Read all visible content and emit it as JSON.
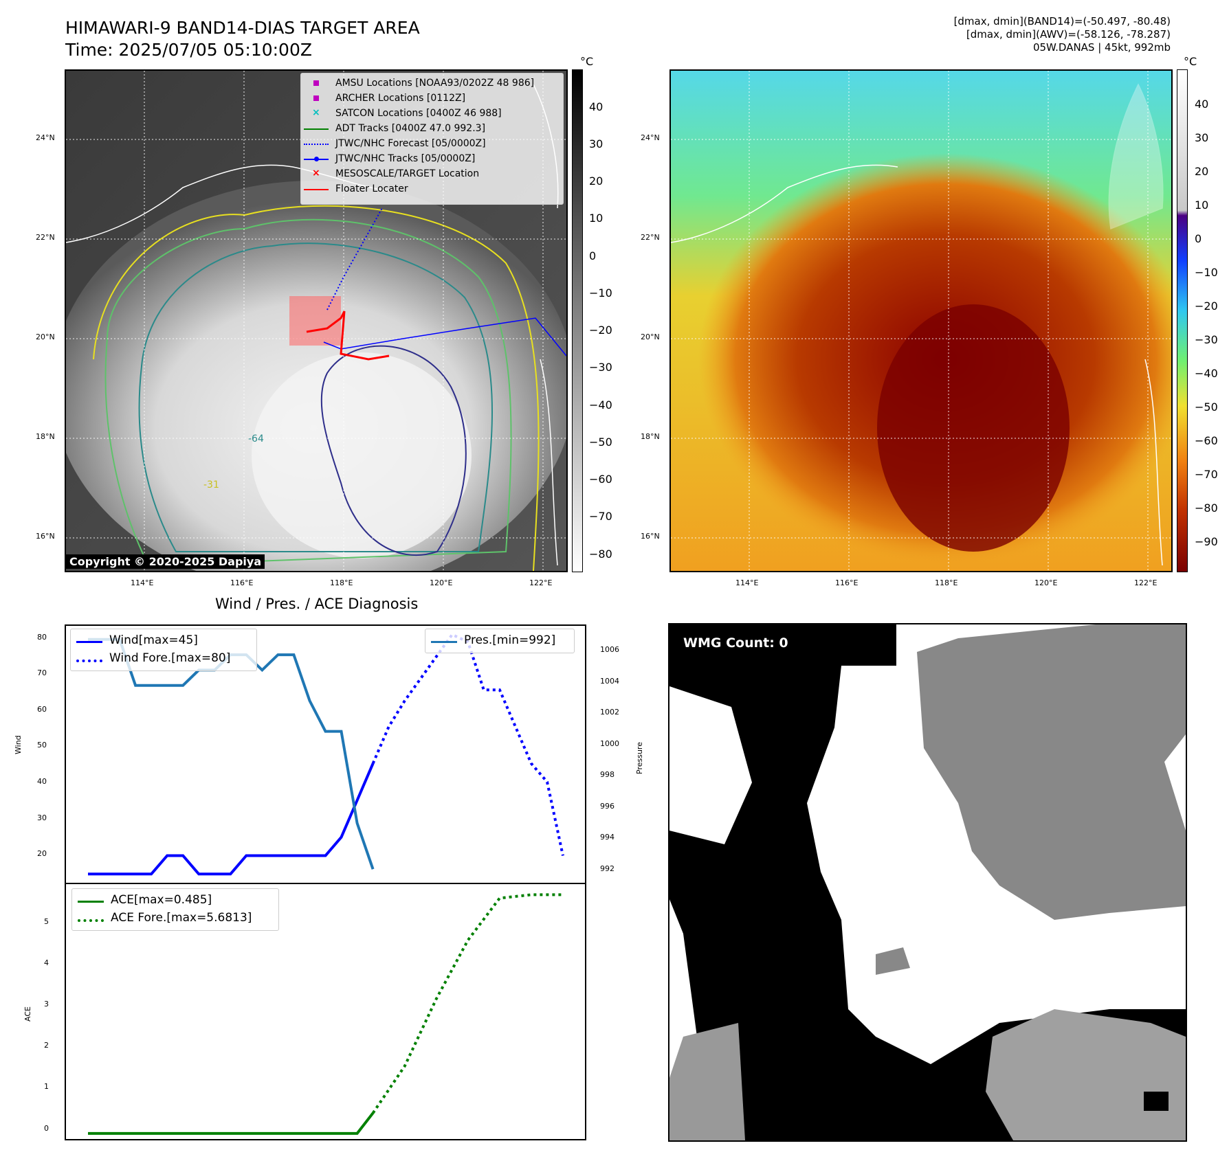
{
  "header": {
    "title": "HIMAWARI-9 BAND14-DIAS TARGET AREA",
    "time": "Time: 2025/07/05 05:10:00Z",
    "info_lines": [
      "[dmax, dmin](BAND14)=(-50.497, -80.48)",
      "[dmax, dmin](AWV)=(-58.126, -78.287)",
      "05W.DANAS | 45kt, 992mb"
    ]
  },
  "map": {
    "lat_ticks": [
      "24°N",
      "22°N",
      "20°N",
      "18°N",
      "16°N"
    ],
    "lon_ticks": [
      "114°E",
      "116°E",
      "118°E",
      "120°E",
      "122°E"
    ],
    "copyright": "Copyright © 2020-2025 Dapiya",
    "legend": [
      {
        "label": "AMSU Locations [NOAA93/0202Z 48 986]",
        "marker": "square",
        "color": "#bf00bf"
      },
      {
        "label": "ARCHER Locations [0112Z]",
        "marker": "square",
        "color": "#bf00bf"
      },
      {
        "label": "SATCON Locations [0400Z 46 988]",
        "marker": "x",
        "color": "#00bfbf"
      },
      {
        "label": "ADT Tracks [0400Z 47.0 992.3]",
        "marker": "line",
        "color": "#008000"
      },
      {
        "label": "JTWC/NHC Forecast [05/0000Z]",
        "marker": "dotted",
        "color": "#0000ff"
      },
      {
        "label": "JTWC/NHC Tracks [05/0000Z]",
        "marker": "line-dot",
        "color": "#0000ff"
      },
      {
        "label": "MESOSCALE/TARGET Location",
        "marker": "x",
        "color": "#ff0000"
      },
      {
        "label": "Floater Locater",
        "marker": "line",
        "color": "#ff0000"
      }
    ],
    "contour_labels": [
      "-64",
      "-31",
      "-64",
      "-64",
      "-64"
    ],
    "colorbar_unit": "°C",
    "colorbar_ticks": [
      "40",
      "30",
      "20",
      "10",
      "0",
      "−10",
      "−20",
      "−30",
      "−40",
      "−50",
      "−60",
      "−70",
      "−80"
    ],
    "awv_colorbar_ticks": [
      "40",
      "30",
      "20",
      "10",
      "0",
      "−10",
      "−20",
      "−30",
      "−40",
      "−50",
      "−60",
      "−70",
      "−80",
      "−90"
    ]
  },
  "diag": {
    "title": "Wind / Pres. / ACE Diagnosis",
    "wind_label": "Wind",
    "pres_label": "Pressure",
    "ace_label": "ACE",
    "wind_ticks": [
      "80",
      "70",
      "60",
      "50",
      "40",
      "30",
      "20"
    ],
    "pres_ticks": [
      "1006",
      "1004",
      "1002",
      "1000",
      "998",
      "996",
      "994",
      "992"
    ],
    "ace_ticks": [
      "5",
      "4",
      "3",
      "2",
      "1",
      "0"
    ],
    "legend_wind": "Wind[max=45]",
    "legend_wind_fore": "Wind Fore.[max=80]",
    "legend_pres": "Pres.[min=992]",
    "legend_ace": "ACE[max=0.485]",
    "legend_ace_fore": "ACE Fore.[max=5.6813]"
  },
  "wmg": {
    "label": "WMG Count: 0"
  },
  "chart_data": [
    {
      "type": "line",
      "title": "Wind / Pres. / ACE Diagnosis",
      "ylabel": "Wind",
      "ylim": [
        13,
        82
      ],
      "series": [
        {
          "name": "Wind[max=45]",
          "style": "solid",
          "color": "#0000ff",
          "x": [
            0,
            1,
            2,
            3,
            4,
            5,
            6,
            7,
            8,
            9,
            10,
            11,
            12,
            13,
            14,
            15,
            16,
            17,
            18
          ],
          "values": [
            15,
            15,
            15,
            15,
            15,
            20,
            20,
            15,
            15,
            15,
            20,
            20,
            20,
            20,
            20,
            20,
            25,
            35,
            45
          ]
        },
        {
          "name": "Wind Fore.[max=80]",
          "style": "dotted",
          "color": "#0000ff",
          "x": [
            18,
            19,
            20,
            21,
            22,
            23,
            24,
            25,
            26,
            27,
            28,
            29,
            30
          ],
          "values": [
            45,
            55,
            62,
            68,
            74,
            80,
            78,
            65,
            65,
            55,
            45,
            40,
            20
          ]
        }
      ]
    },
    {
      "type": "line",
      "ylabel": "Pressure",
      "ylim": [
        991.2,
        1007.8
      ],
      "series": [
        {
          "name": "Pres.[min=992]",
          "style": "solid",
          "color": "#1f77b4",
          "x": [
            0,
            1,
            2,
            3,
            4,
            5,
            6,
            7,
            8,
            9,
            10,
            11,
            12,
            13,
            14,
            15,
            16,
            17,
            18
          ],
          "values": [
            1007,
            1007,
            1007,
            1004,
            1004,
            1004,
            1004,
            1005,
            1005,
            1006,
            1006,
            1005,
            1006,
            1006,
            1003,
            1001,
            1001,
            995,
            992
          ]
        }
      ]
    },
    {
      "type": "line",
      "ylabel": "ACE",
      "ylim": [
        -0.1,
        5.9
      ],
      "series": [
        {
          "name": "ACE[max=0.485]",
          "style": "solid",
          "color": "#008000",
          "x": [
            0,
            17,
            18
          ],
          "values": [
            0,
            0,
            0.485
          ]
        },
        {
          "name": "ACE Fore.[max=5.6813]",
          "style": "dotted",
          "color": "#008000",
          "x": [
            18,
            20,
            22,
            24,
            26,
            28,
            30
          ],
          "values": [
            0.485,
            1.6,
            3.2,
            4.6,
            5.6,
            5.6813,
            5.6813
          ]
        }
      ]
    }
  ]
}
